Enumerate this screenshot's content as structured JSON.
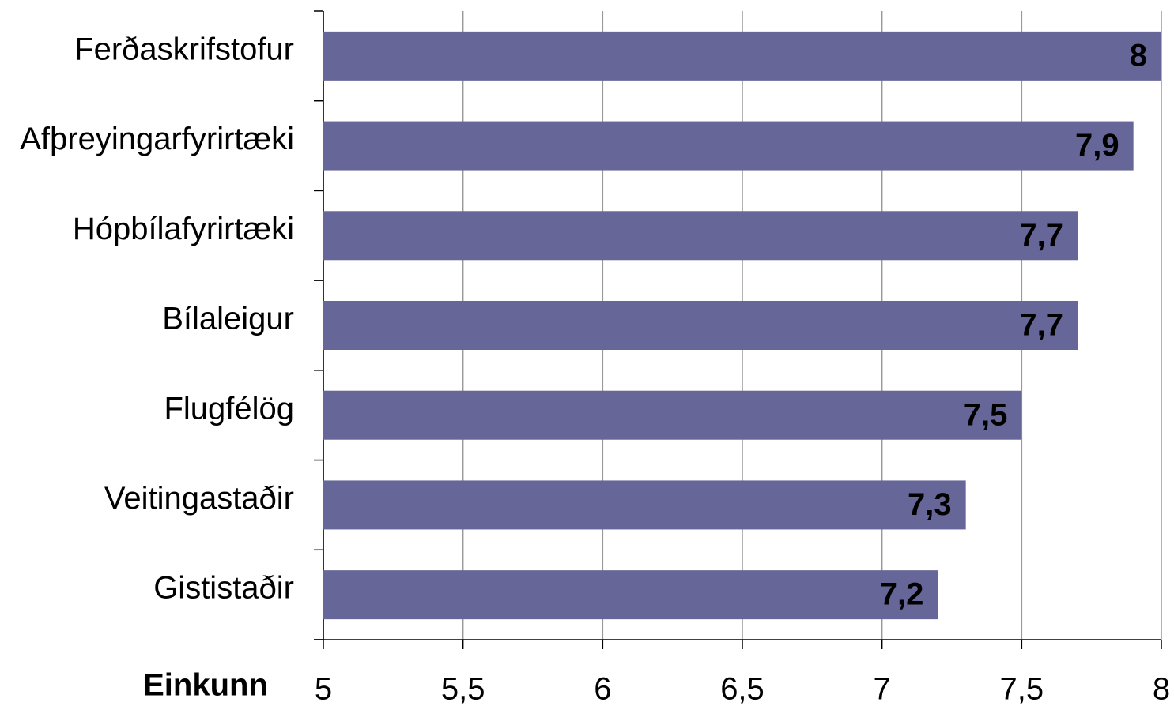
{
  "chart_data": {
    "type": "bar",
    "orientation": "horizontal",
    "x_label": "Einkunn",
    "categories": [
      "Ferðaskrifstofur",
      "Afþreyingarfyrirtæki",
      "Hópbílafyrirtæki",
      "Bílaleigur",
      "Flugfélög",
      "Veitingastaðir",
      "Gististaðir"
    ],
    "values": [
      8,
      7.9,
      7.7,
      7.7,
      7.5,
      7.3,
      7.2
    ],
    "value_labels": [
      "8",
      "7,9",
      "7,7",
      "7,7",
      "7,5",
      "7,3",
      "7,2"
    ],
    "color": "#666699",
    "xlim": [
      5,
      8
    ],
    "xticks": [
      5,
      {
        "value": 5.5,
        "label": "5,5"
      },
      6,
      {
        "value": 6.5,
        "label": "6,5"
      },
      7,
      {
        "value": 7.5,
        "label": "7,5"
      },
      8
    ],
    "grid": true
  }
}
